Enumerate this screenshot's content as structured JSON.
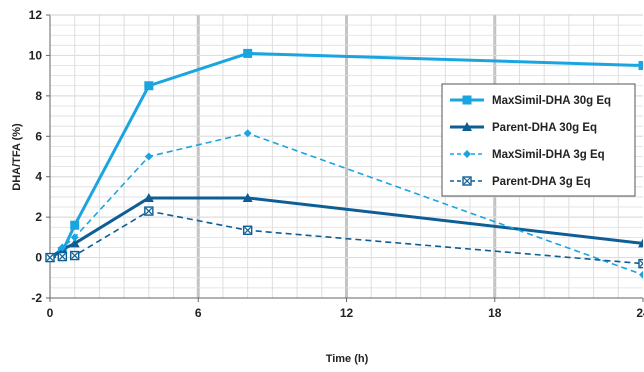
{
  "chart_data": {
    "type": "line",
    "xlabel": "Time (h)",
    "ylabel": "DHA/TFA (%)",
    "xlim": [
      0,
      24
    ],
    "ylim": [
      -2,
      12
    ],
    "x_ticks": [
      "0",
      "6",
      "12",
      "18",
      "24"
    ],
    "y_ticks": [
      "-2",
      "0",
      "2",
      "4",
      "6",
      "8",
      "10",
      "12"
    ],
    "grid": true,
    "legend_position": "right",
    "series": [
      {
        "name": "MaxSimil-DHA 30g Eq",
        "color": "#1aa5e0",
        "style": "solid",
        "marker": "square",
        "x": [
          0,
          0.5,
          1,
          4,
          8,
          24
        ],
        "y": [
          0,
          0.3,
          1.6,
          8.5,
          10.1,
          9.5
        ]
      },
      {
        "name": "Parent-DHA 30g Eq",
        "color": "#0e5e96",
        "style": "solid",
        "marker": "triangle",
        "x": [
          0,
          0.5,
          1,
          4,
          8,
          24
        ],
        "y": [
          0,
          0.4,
          0.7,
          2.95,
          2.95,
          0.7
        ]
      },
      {
        "name": "MaxSimil-DHA 3g Eq",
        "color": "#1aa5e0",
        "style": "dashed",
        "marker": "diamond",
        "x": [
          0,
          0.5,
          1,
          4,
          8,
          24
        ],
        "y": [
          0,
          0.5,
          1.0,
          5.0,
          6.15,
          -0.85
        ]
      },
      {
        "name": "Parent-DHA 3g Eq",
        "color": "#0e5e96",
        "style": "dashed",
        "marker": "xsquare",
        "x": [
          0,
          0.5,
          1,
          4,
          8,
          24
        ],
        "y": [
          0,
          0.05,
          0.1,
          2.3,
          1.35,
          -0.3
        ]
      }
    ]
  }
}
